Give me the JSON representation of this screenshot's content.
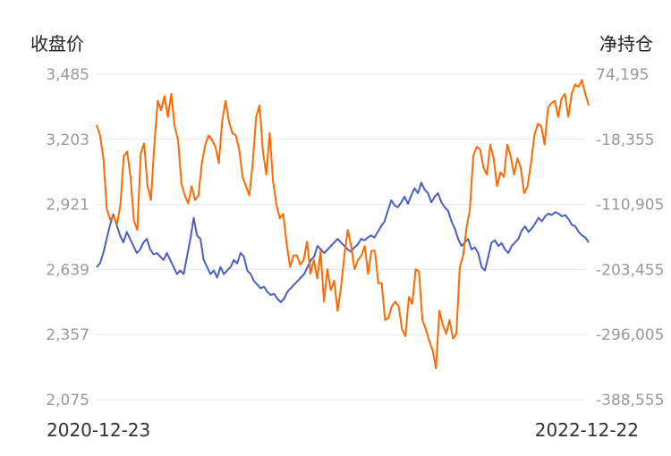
{
  "chart_data": {
    "type": "line",
    "left_axis_title": "收盘价",
    "right_axis_title": "净持仓",
    "left_ticks": [
      "3,485",
      "3,203",
      "2,921",
      "2,639",
      "2,357",
      "2,075"
    ],
    "right_ticks": [
      "74,195",
      "-18,355",
      "-110,905",
      "-203,455",
      "-296,005",
      "-388,555"
    ],
    "ylim_left": [
      2075,
      3485
    ],
    "ylim_right": [
      -388555,
      74195
    ],
    "x_start_label": "2020-12-23",
    "x_end_label": "2022-12-22",
    "grid": true,
    "colors": {
      "close": "#ff6a00",
      "net_position": "#4a5fc1",
      "grid": "#e6e6e6"
    },
    "series": [
      {
        "axis": "left",
        "values": [
          3265,
          3220,
          3120,
          2900,
          2855,
          2870,
          2835,
          2920,
          3130,
          3150,
          3040,
          2850,
          2810,
          3140,
          3185,
          3000,
          2940,
          3180,
          3370,
          3330,
          3390,
          3300,
          3400,
          3260,
          3200,
          3010,
          2960,
          2925,
          3000,
          2940,
          2960,
          3100,
          3180,
          3220,
          3200,
          3170,
          3100,
          3280,
          3370,
          3280,
          3230,
          3220,
          3160,
          3040,
          3000,
          2960,
          3100,
          3300,
          3350,
          3150,
          3050,
          3230,
          3020,
          2920,
          2860,
          2880,
          2750,
          2650,
          2700,
          2700,
          2660,
          2680,
          2760,
          2620,
          2680,
          2600,
          2720,
          2500,
          2640,
          2550,
          2590,
          2460,
          2560,
          2700,
          2810,
          2740,
          2640,
          2680,
          2700,
          2740,
          2620,
          2720,
          2720,
          2580,
          2580,
          2420,
          2430,
          2480,
          2500,
          2480,
          2380,
          2350,
          2520,
          2490,
          2640,
          2630,
          2420,
          2380,
          2330,
          2290,
          2210,
          2460,
          2400,
          2360,
          2420,
          2340,
          2360,
          2650,
          2700,
          2820,
          2900,
          3130,
          3170,
          3160,
          3080,
          3050,
          3180,
          3120,
          3000,
          3060,
          3040,
          3180,
          3130,
          3050,
          3120,
          3080,
          2970,
          3000,
          3100,
          3220,
          3270,
          3260,
          3180,
          3340,
          3360,
          3370,
          3300,
          3380,
          3400,
          3300,
          3400,
          3440,
          3430,
          3460,
          3400,
          3350
        ]
      },
      {
        "axis": "right",
        "values": [
          -200000,
          -195000,
          -180000,
          -160000,
          -140000,
          -125000,
          -140000,
          -155000,
          -165000,
          -150000,
          -160000,
          -170000,
          -180000,
          -175000,
          -165000,
          -160000,
          -175000,
          -182000,
          -180000,
          -185000,
          -190000,
          -180000,
          -190000,
          -200000,
          -210000,
          -205000,
          -210000,
          -185000,
          -160000,
          -130000,
          -155000,
          -160000,
          -190000,
          -200000,
          -210000,
          -205000,
          -215000,
          -200000,
          -210000,
          -205000,
          -200000,
          -190000,
          -195000,
          -180000,
          -185000,
          -205000,
          -210000,
          -220000,
          -225000,
          -230000,
          -228000,
          -235000,
          -240000,
          -238000,
          -245000,
          -250000,
          -245000,
          -235000,
          -230000,
          -225000,
          -220000,
          -215000,
          -210000,
          -200000,
          -190000,
          -185000,
          -170000,
          -175000,
          -180000,
          -175000,
          -170000,
          -165000,
          -160000,
          -165000,
          -170000,
          -175000,
          -178000,
          -172000,
          -168000,
          -160000,
          -162000,
          -158000,
          -155000,
          -158000,
          -150000,
          -142000,
          -135000,
          -120000,
          -105000,
          -112000,
          -115000,
          -108000,
          -100000,
          -110000,
          -98000,
          -88000,
          -95000,
          -80000,
          -90000,
          -95000,
          -108000,
          -100000,
          -95000,
          -108000,
          -115000,
          -120000,
          -135000,
          -145000,
          -160000,
          -170000,
          -165000,
          -160000,
          -175000,
          -172000,
          -180000,
          -200000,
          -205000,
          -185000,
          -165000,
          -162000,
          -170000,
          -166000,
          -175000,
          -180000,
          -170000,
          -165000,
          -160000,
          -148000,
          -142000,
          -150000,
          -145000,
          -138000,
          -130000,
          -135000,
          -128000,
          -124000,
          -126000,
          -122000,
          -124000,
          -128000,
          -126000,
          -132000,
          -140000,
          -142000,
          -150000,
          -155000,
          -158000,
          -165000
        ]
      }
    ]
  }
}
